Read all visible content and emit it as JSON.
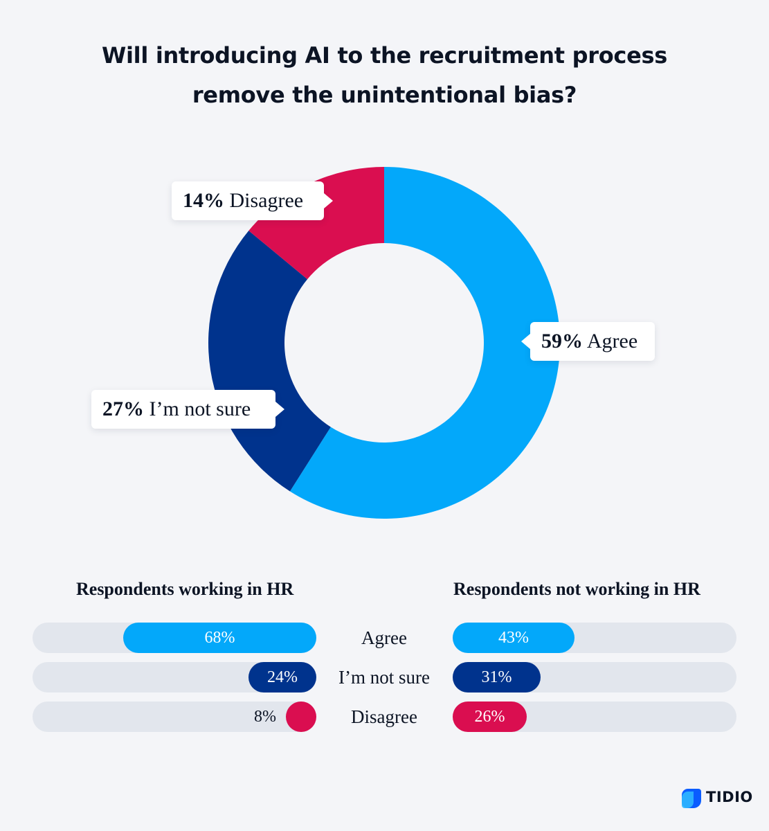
{
  "title": {
    "line1": "Will introducing AI to the recruitment process",
    "line2": "remove the unintentional bias?"
  },
  "colors": {
    "agree": "#03a8fa",
    "not_sure": "#00338d",
    "disagree": "#da0e50",
    "track": "#e2e6ed"
  },
  "chart_data": [
    {
      "type": "pie",
      "variant": "donut",
      "title": "Will introducing AI to the recruitment process remove the unintentional bias?",
      "slices": [
        {
          "label": "Agree",
          "value": 59,
          "text": "59% Agree",
          "color": "#03a8fa"
        },
        {
          "label": "I’m not sure",
          "value": 27,
          "text": "27% I’m not sure",
          "color": "#00338d"
        },
        {
          "label": "Disagree",
          "value": 14,
          "text": "14% Disagree",
          "color": "#da0e50"
        }
      ]
    },
    {
      "type": "bar",
      "orientation": "horizontal",
      "direction": "right-to-left",
      "title": "Respondents working in HR",
      "categories": [
        "Agree",
        "I’m not sure",
        "Disagree"
      ],
      "values": [
        68,
        24,
        8
      ],
      "labels": [
        "68%",
        "24%",
        "8%"
      ],
      "xlim": [
        0,
        100
      ]
    },
    {
      "type": "bar",
      "orientation": "horizontal",
      "direction": "left-to-right",
      "title": "Respondents not working in HR",
      "categories": [
        "Agree",
        "I’m not sure",
        "Disagree"
      ],
      "values": [
        43,
        31,
        26
      ],
      "labels": [
        "43%",
        "31%",
        "26%"
      ],
      "xlim": [
        0,
        100
      ]
    }
  ],
  "callouts": {
    "disagree": {
      "pct": "14%",
      "label": "Disagree"
    },
    "not_sure": {
      "pct": "27%",
      "label": "I’m not sure"
    },
    "agree": {
      "pct": "59%",
      "label": "Agree"
    }
  },
  "brand": {
    "name": "TIDIO",
    "icon": "tidio-logo-icon"
  }
}
